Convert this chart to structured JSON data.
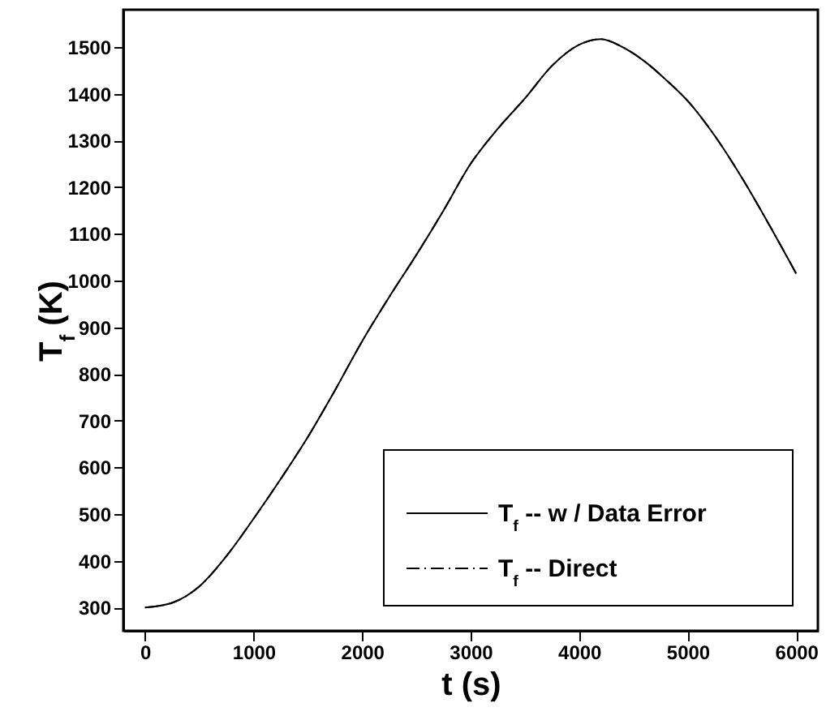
{
  "chart_data": {
    "type": "line",
    "xlabel": "t (s)",
    "ylabel": "T$_{f}$ (K)",
    "x": [
      0,
      250,
      500,
      750,
      1000,
      1250,
      1500,
      1750,
      2000,
      2250,
      2500,
      2750,
      3000,
      3250,
      3500,
      3750,
      4000,
      4200,
      4400,
      4600,
      4800,
      5000,
      5250,
      5500,
      5750,
      6000
    ],
    "series": [
      {
        "name": "T$_{f}$ -- w / Data Error",
        "color": "#000000",
        "line_style": "solid",
        "values": [
          300,
          310,
          345,
          410,
          490,
          575,
          665,
          765,
          870,
          965,
          1055,
          1150,
          1250,
          1325,
          1390,
          1460,
          1505,
          1517,
          1500,
          1470,
          1430,
          1385,
          1310,
          1220,
          1120,
          1015
        ]
      },
      {
        "name": "T$_{f}$ -- Direct",
        "color": "#000000",
        "line_style": "dashdot",
        "values": [
          300,
          310,
          345,
          410,
          490,
          575,
          665,
          765,
          870,
          965,
          1055,
          1150,
          1250,
          1325,
          1390,
          1460,
          1505,
          1517,
          1500,
          1470,
          1430,
          1385,
          1310,
          1220,
          1120,
          1015
        ]
      }
    ],
    "xlim": [
      -200,
      6200
    ],
    "ylim": [
      250,
      1580
    ],
    "xticks": [
      0,
      1000,
      2000,
      3000,
      4000,
      5000,
      6000
    ],
    "yticks": [
      300,
      400,
      500,
      600,
      700,
      800,
      900,
      1000,
      1100,
      1200,
      1300,
      1400,
      1500
    ],
    "legend": "bottom right"
  }
}
